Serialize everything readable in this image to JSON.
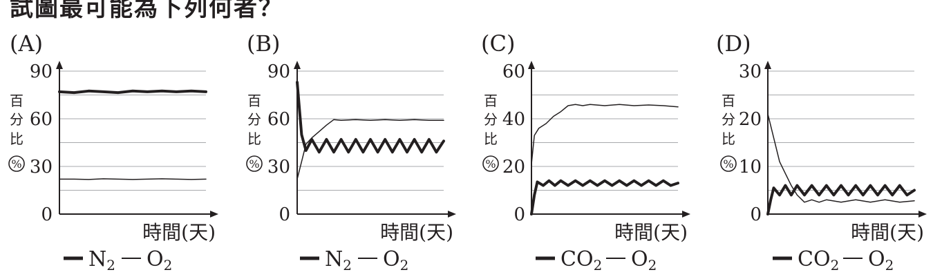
{
  "top_text": "試圖最可能為下列何者？",
  "chart_data": [
    {
      "type": "line",
      "panel_label": "(A)",
      "ylabel": "百分比(%)",
      "xlabel": "時間(天)",
      "ylim": [
        0,
        90
      ],
      "yticks": [
        0,
        30,
        60,
        90
      ],
      "grid": true,
      "legend_position": "bottom",
      "series": [
        {
          "name": "N2",
          "style": "thick",
          "x": [
            0,
            10,
            20,
            30,
            40,
            50,
            60,
            70,
            80,
            90,
            100
          ],
          "y": [
            77,
            76.5,
            77.5,
            77,
            76.5,
            77.5,
            77,
            77.5,
            77,
            77.5,
            77
          ]
        },
        {
          "name": "O2",
          "style": "thin",
          "x": [
            0,
            10,
            20,
            30,
            40,
            50,
            60,
            70,
            80,
            90,
            100
          ],
          "y": [
            22,
            22,
            21.8,
            22.2,
            22,
            21.8,
            22,
            22.2,
            22,
            21.8,
            22
          ]
        }
      ]
    },
    {
      "type": "line",
      "panel_label": "(B)",
      "ylabel": "百分比(%)",
      "xlabel": "時間(天)",
      "ylim": [
        0,
        90
      ],
      "yticks": [
        0,
        30,
        60,
        90
      ],
      "grid": true,
      "legend_position": "bottom",
      "series": [
        {
          "name": "N2",
          "style": "thick",
          "x": [
            0,
            3,
            6,
            10,
            15,
            20,
            25,
            30,
            35,
            40,
            45,
            50,
            55,
            60,
            65,
            70,
            75,
            80,
            85,
            90,
            95,
            100
          ],
          "y": [
            83,
            50,
            40,
            47,
            39,
            47,
            39,
            47,
            39,
            47,
            39,
            47,
            39,
            47,
            39,
            47,
            39,
            47,
            39,
            47,
            39,
            46
          ]
        },
        {
          "name": "O2",
          "style": "thin",
          "x": [
            0,
            3,
            6,
            10,
            15,
            20,
            25,
            30,
            40,
            50,
            60,
            70,
            80,
            90,
            100
          ],
          "y": [
            22,
            33,
            44,
            48,
            52,
            56,
            59.5,
            59,
            59.5,
            59,
            59.5,
            59,
            59.5,
            59,
            59
          ]
        }
      ]
    },
    {
      "type": "line",
      "panel_label": "(C)",
      "ylabel": "百分比(%)",
      "xlabel": "時間(天)",
      "ylim": [
        0,
        60
      ],
      "yticks": [
        0,
        20,
        40,
        60
      ],
      "grid": true,
      "legend_position": "bottom",
      "series": [
        {
          "name": "CO2",
          "style": "thick",
          "x": [
            0,
            2,
            4,
            8,
            12,
            16,
            20,
            25,
            30,
            35,
            40,
            45,
            50,
            55,
            60,
            65,
            70,
            75,
            80,
            85,
            90,
            95,
            100
          ],
          "y": [
            0,
            8,
            13.5,
            12,
            14,
            12,
            14,
            12,
            14,
            12,
            14,
            12,
            14,
            12,
            14,
            12,
            14,
            12,
            14,
            12,
            14,
            12,
            13
          ]
        },
        {
          "name": "O2",
          "style": "thin",
          "x": [
            0,
            2,
            5,
            10,
            15,
            20,
            25,
            30,
            35,
            40,
            50,
            60,
            70,
            80,
            90,
            100
          ],
          "y": [
            21,
            33,
            36,
            38,
            41,
            43,
            45.5,
            46,
            45.5,
            46,
            45.5,
            46,
            45.5,
            45.8,
            45.5,
            45
          ]
        }
      ]
    },
    {
      "type": "line",
      "panel_label": "(D)",
      "ylabel": "百分比(%)",
      "xlabel": "時間(天)",
      "ylim": [
        0,
        30
      ],
      "yticks": [
        0,
        10,
        20,
        30
      ],
      "grid": true,
      "legend_position": "bottom",
      "series": [
        {
          "name": "CO2",
          "style": "thick",
          "x": [
            0,
            2,
            4,
            8,
            12,
            16,
            20,
            25,
            30,
            35,
            40,
            45,
            50,
            55,
            60,
            65,
            70,
            75,
            80,
            85,
            90,
            95,
            100
          ],
          "y": [
            0,
            3,
            5.5,
            4,
            6,
            4,
            6,
            4,
            6,
            4,
            6,
            4,
            6,
            4,
            6,
            4,
            6,
            4,
            6,
            4,
            6,
            4,
            5
          ]
        },
        {
          "name": "O2",
          "style": "thin",
          "x": [
            0,
            4,
            8,
            12,
            16,
            20,
            25,
            30,
            35,
            40,
            50,
            60,
            70,
            80,
            90,
            100
          ],
          "y": [
            21,
            16,
            11,
            8.5,
            6,
            4,
            2.5,
            3,
            2.5,
            3,
            2.5,
            3,
            2.5,
            3,
            2.5,
            2.8
          ]
        }
      ]
    }
  ]
}
